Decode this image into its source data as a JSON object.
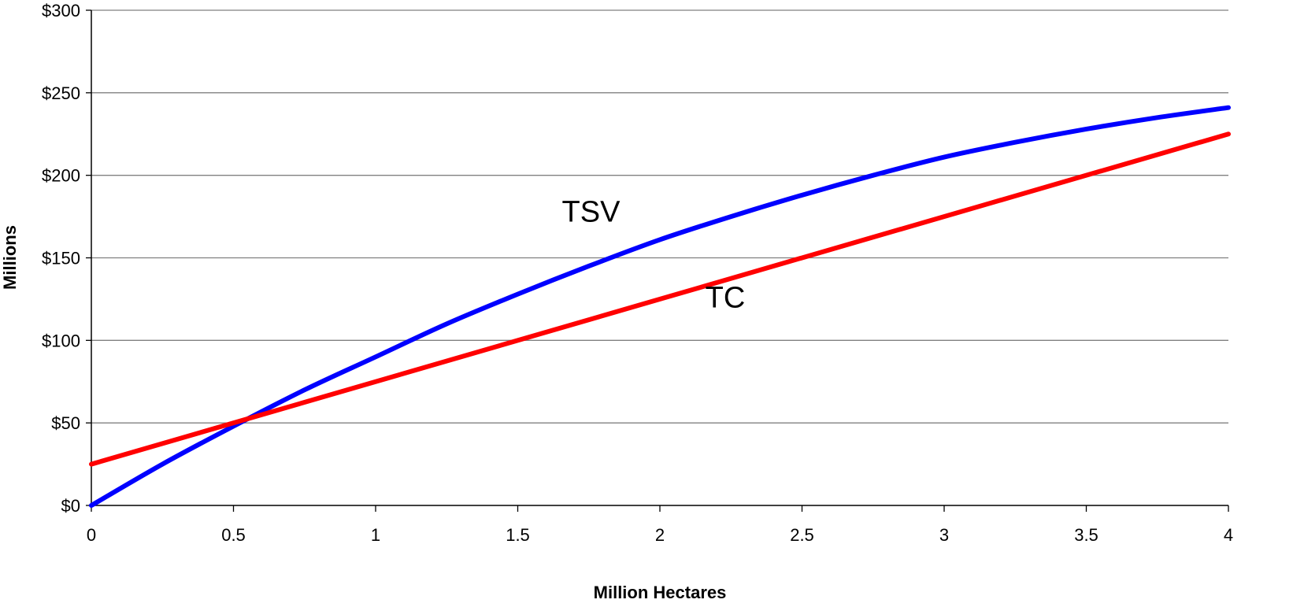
{
  "chart_data": {
    "type": "line",
    "xlabel": "Million Hectares",
    "ylabel": "Millions",
    "xlim": [
      0,
      4
    ],
    "ylim": [
      0,
      300
    ],
    "x_ticks": [
      "0",
      "0.5",
      "1",
      "1.5",
      "2",
      "2.5",
      "3",
      "3.5",
      "4"
    ],
    "y_ticks": [
      "$0",
      "$50",
      "$100",
      "$150",
      "$200",
      "$250",
      "$300"
    ],
    "grid": "horizontal",
    "series": [
      {
        "name": "TSV",
        "color": "#0000FF",
        "x": [
          0,
          0.25,
          0.5,
          0.75,
          1,
          1.25,
          1.5,
          1.75,
          2,
          2.25,
          2.5,
          2.75,
          3,
          3.25,
          3.5,
          3.75,
          4
        ],
        "y": [
          0,
          25,
          48,
          70,
          90,
          110,
          128,
          145,
          161,
          175,
          188,
          200,
          211,
          220,
          228,
          235,
          241
        ],
        "label_at": [
          1.86,
          172
        ]
      },
      {
        "name": "TC",
        "color": "#FF0000",
        "x": [
          0,
          4
        ],
        "y": [
          25,
          225
        ],
        "label_at": [
          2.3,
          120
        ]
      }
    ]
  }
}
